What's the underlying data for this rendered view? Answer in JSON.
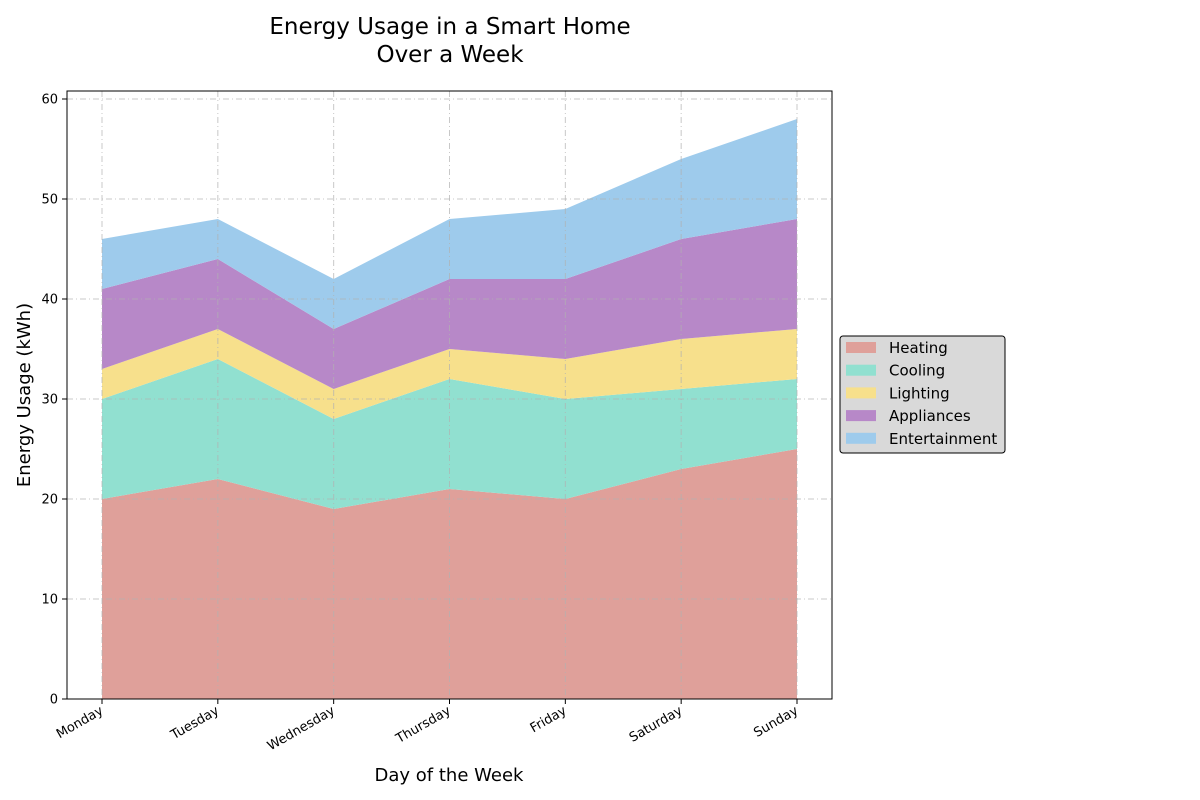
{
  "chart_data": {
    "type": "area",
    "stacked": true,
    "title_lines": [
      "Energy Usage in a Smart Home",
      "Over a Week"
    ],
    "xlabel": "Day of the Week",
    "ylabel": "Energy Usage (kWh)",
    "categories": [
      "Monday",
      "Tuesday",
      "Wednesday",
      "Thursday",
      "Friday",
      "Saturday",
      "Sunday"
    ],
    "ylim": [
      0,
      60
    ],
    "yticks": [
      0,
      10,
      20,
      30,
      40,
      50,
      60
    ],
    "grid": true,
    "legend_position": "right",
    "series": [
      {
        "name": "Heating",
        "color": "#dfa09a",
        "values": [
          20,
          22,
          19,
          21,
          20,
          23,
          25
        ]
      },
      {
        "name": "Cooling",
        "color": "#91e0d0",
        "values": [
          10,
          12,
          9,
          11,
          10,
          8,
          7
        ]
      },
      {
        "name": "Lighting",
        "color": "#f7e08c",
        "values": [
          3,
          3,
          3,
          3,
          4,
          5,
          5
        ]
      },
      {
        "name": "Appliances",
        "color": "#b788c8",
        "values": [
          8,
          7,
          6,
          7,
          8,
          10,
          11
        ]
      },
      {
        "name": "Entertainment",
        "color": "#9ecbec",
        "values": [
          5,
          4,
          5,
          6,
          7,
          8,
          10
        ]
      }
    ]
  }
}
